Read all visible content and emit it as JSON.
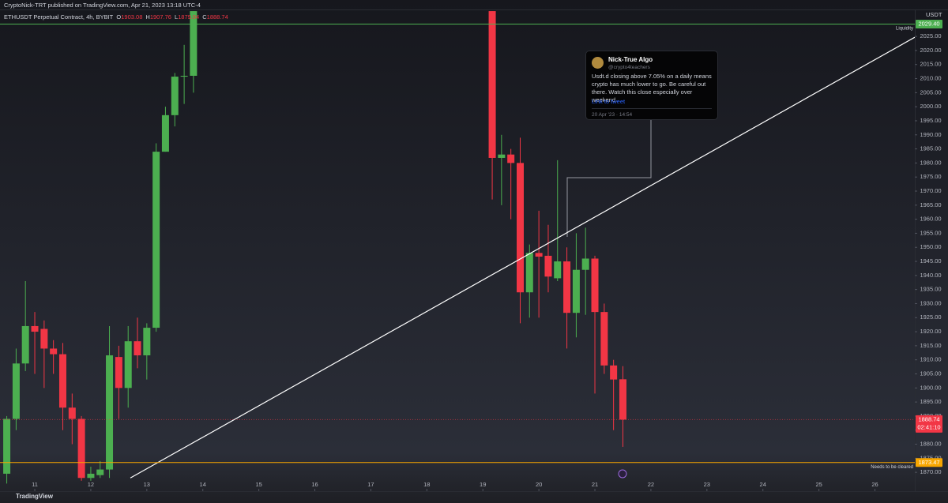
{
  "header": {
    "publisher": "CryptoNick-TRT published on TradingView.com, Apr 21, 2023 13:18 UTC-4",
    "symbol": "ETHUSDT Perpetual Contract, 4h, BYBIT",
    "ohlc": [
      {
        "key": "O",
        "value": 1903.08
      },
      {
        "key": "H",
        "value": 1907.76
      },
      {
        "key": "L",
        "value": 1879.04
      },
      {
        "key": "C",
        "value": 1888.74
      }
    ]
  },
  "chart_data": {
    "type": "candlestick",
    "y_axis_title": "USDT",
    "x": [
      10.5,
      10.667,
      10.833,
      11,
      11.167,
      11.333,
      11.5,
      11.667,
      11.833,
      12,
      12.167,
      12.333,
      12.5,
      12.667,
      12.833,
      13,
      13.167,
      13.333,
      13.5,
      13.667,
      13.833,
      19.167,
      19.333,
      19.5,
      19.667,
      19.833,
      20,
      20.167,
      20.333,
      20.5,
      20.667,
      20.833,
      21,
      21.167,
      21.333,
      21.5
    ],
    "open": [
      1869.5,
      1889,
      1908.7,
      1922,
      1921,
      1914,
      1912,
      1893,
      1889,
      1868,
      1869,
      1871,
      1911,
      1900,
      1916.6,
      1911.6,
      1921.4,
      1984,
      1997,
      2010.7,
      2011,
      2034,
      1981.8,
      1983,
      1980,
      1934,
      1948,
      1947,
      1939,
      1945,
      1926.7,
      1942,
      1946,
      1927,
      1908,
      1903.08
    ],
    "high": [
      1890,
      1914,
      1938,
      1927,
      1924,
      1917,
      1916,
      1898,
      1890,
      1872,
      1874,
      1922,
      1915,
      1922,
      1925,
      1923,
      1987,
      2000,
      2012,
      2022,
      2034,
      2034,
      1990,
      1985,
      1989,
      1951,
      1963,
      1958,
      1981,
      1950,
      1955,
      1957,
      1947,
      1930,
      1910,
      1907.76
    ],
    "low": [
      1866,
      1885,
      1906,
      1905,
      1900,
      1905,
      1885,
      1880,
      1867,
      1867,
      1868,
      1868,
      1889,
      1893,
      1907,
      1903,
      1920,
      1984,
      1993,
      2001,
      2005,
      1967,
      1965,
      1960,
      1923,
      1925,
      1925,
      1934,
      1938,
      1914,
      1918,
      1926,
      1898,
      1905,
      1885,
      1879.04
    ],
    "close": [
      1889,
      1908.7,
      1922,
      1920,
      1914,
      1912,
      1893,
      1889,
      1868,
      1869.5,
      1871,
      1911.6,
      1900,
      1916.6,
      1911.6,
      1921.4,
      1984,
      1997,
      2010.7,
      2011,
      2034,
      1981.8,
      1983,
      1980,
      1934,
      1948,
      1946.7,
      1939.6,
      1945,
      1926.7,
      1942,
      1946,
      1927,
      1908,
      1903,
      1888.74
    ],
    "up_color": "#4caf50",
    "down_color": "#f23645",
    "xlim": [
      10.379,
      26.712
    ],
    "ylim": [
      1863.3,
      2034.3
    ],
    "xticks": [
      11,
      12,
      13,
      14,
      15,
      16,
      17,
      18,
      19,
      20,
      21,
      22,
      23,
      24,
      25,
      26
    ],
    "yticks": [
      {
        "value": 1870,
        "label": "1870.00"
      },
      {
        "value": 1875,
        "label": "1875.00"
      },
      {
        "value": 1880,
        "label": "1880.00"
      },
      {
        "value": 1885,
        "label": "1885.00"
      },
      {
        "value": 1890,
        "label": "1890.00"
      },
      {
        "value": 1895,
        "label": "1895.00"
      },
      {
        "value": 1900,
        "label": "1900.00"
      },
      {
        "value": 1905,
        "label": "1905.00"
      },
      {
        "value": 1910,
        "label": "1910.00"
      },
      {
        "value": 1915,
        "label": "1915.00"
      },
      {
        "value": 1920,
        "label": "1920.00"
      },
      {
        "value": 1925,
        "label": "1925.00"
      },
      {
        "value": 1930,
        "label": "1930.00"
      },
      {
        "value": 1935,
        "label": "1935.00"
      },
      {
        "value": 1940,
        "label": "1940.00"
      },
      {
        "value": 1945,
        "label": "1945.00"
      },
      {
        "value": 1950,
        "label": "1950.00"
      },
      {
        "value": 1955,
        "label": "1955.00"
      },
      {
        "value": 1960,
        "label": "1960.00"
      },
      {
        "value": 1965,
        "label": "1965.00"
      },
      {
        "value": 1970,
        "label": "1970.00"
      },
      {
        "value": 1975,
        "label": "1975.00"
      },
      {
        "value": 1980,
        "label": "1980.00"
      },
      {
        "value": 1985,
        "label": "1985.00"
      },
      {
        "value": 1990,
        "label": "1990.00"
      },
      {
        "value": 1995,
        "label": "1995.00"
      },
      {
        "value": 2000,
        "label": "2000.00"
      },
      {
        "value": 2005,
        "label": "2005.00"
      },
      {
        "value": 2010,
        "label": "2010.00"
      },
      {
        "value": 2015,
        "label": "2015.00"
      },
      {
        "value": 2020,
        "label": "2020.00"
      },
      {
        "value": 2025,
        "label": "2025.00"
      }
    ],
    "trendline": {
      "x": [
        12.707,
        26.712
      ],
      "y": [
        1868.0,
        2024.7
      ],
      "color": "#ffffff"
    },
    "levels": [
      {
        "value": 2029.4,
        "label": "2029.40",
        "color": "#4caf50",
        "note": "Liquidity"
      },
      {
        "value": 1888.74,
        "label": "1888.74",
        "color": "#f23645",
        "countdown": "02:41:10"
      },
      {
        "value": 1873.47,
        "label": "1873.47",
        "color": "#f7a600",
        "note": "Needs to be cleared"
      }
    ]
  },
  "tweet": {
    "name": "Nick-True Algo",
    "handle": "@crypto4teachers",
    "text": "Usdt.d closing above 7.05% on a daily means crypto has much lower to go. Be careful out there. Watch this close especially over weekend.",
    "link": "Link to tweet",
    "date": "20 Apr '23 · 14:54"
  },
  "footer": {
    "brand": "TradingView"
  }
}
